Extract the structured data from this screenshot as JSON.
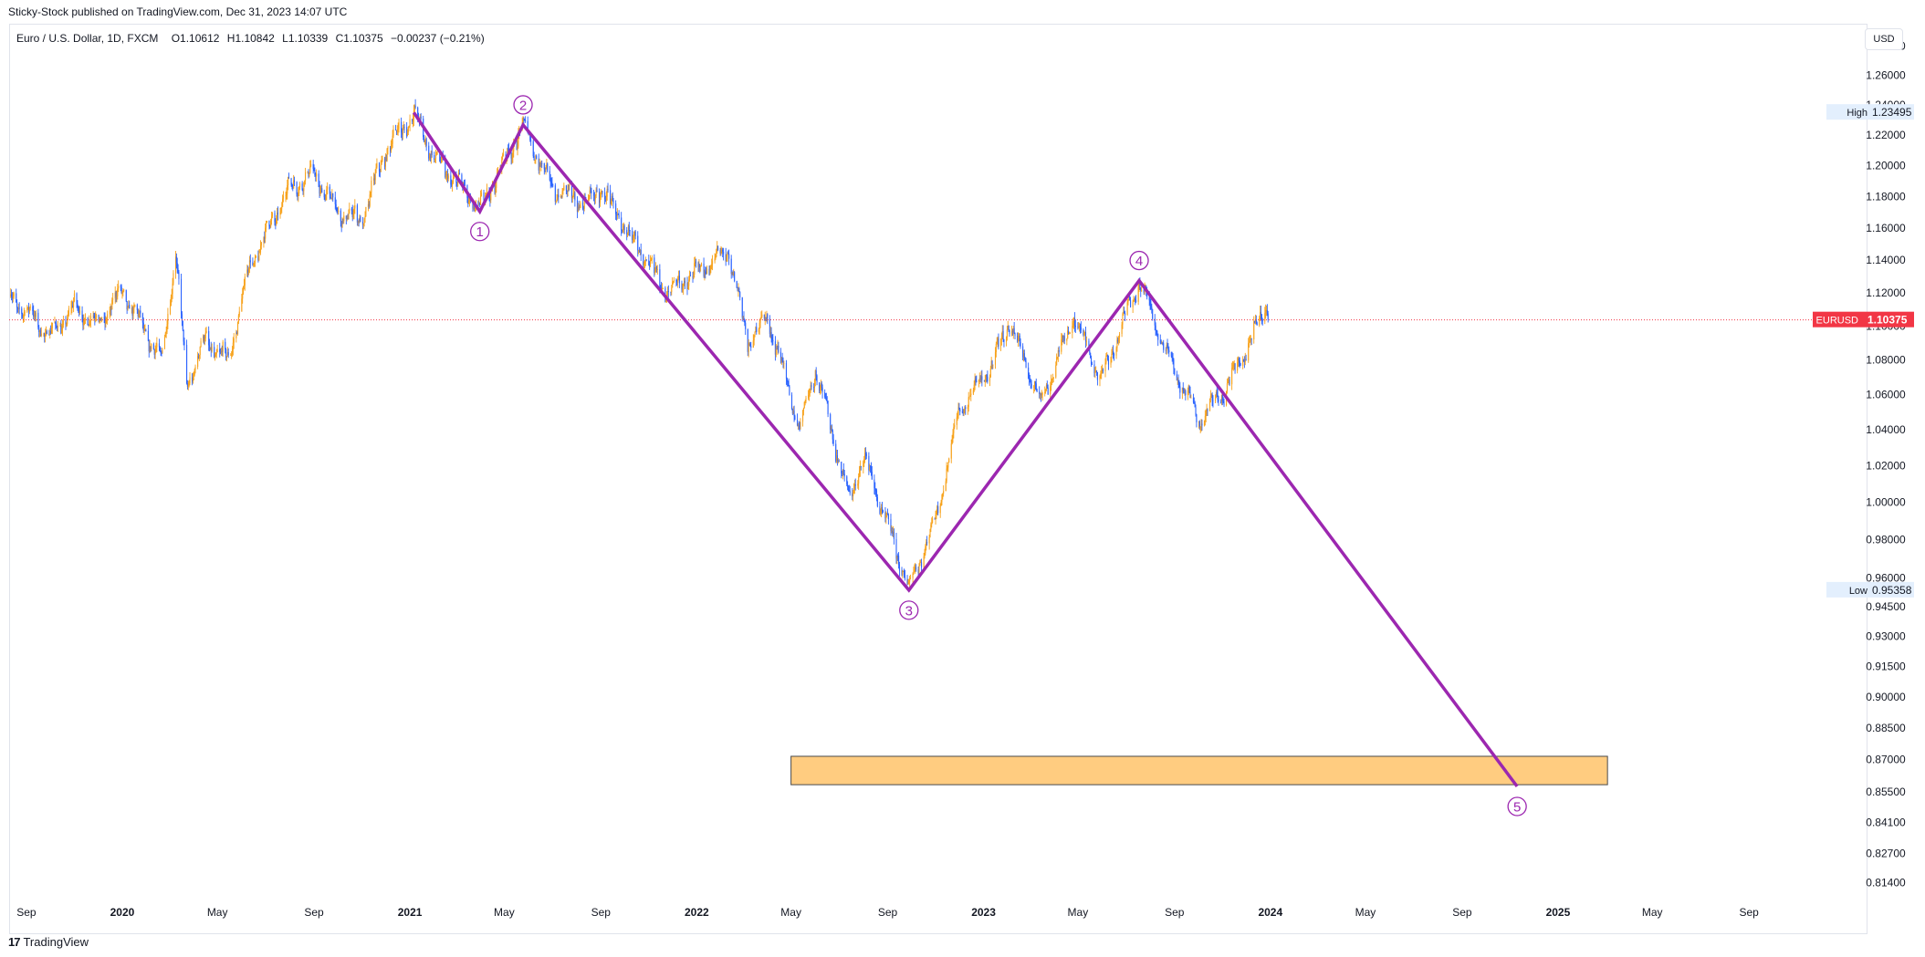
{
  "header": {
    "published": "Sticky-Stock published on TradingView.com, Dec 31, 2023 14:07 UTC"
  },
  "symbol": {
    "name": "Euro / U.S. Dollar, 1D, FXCM",
    "open": "O1.10612",
    "high": "H1.10842",
    "low": "L1.10339",
    "close": "C1.10375",
    "change": "−0.00237 (−0.21%)"
  },
  "currency_button": "USD",
  "footer": {
    "brand": "TradingView",
    "logo_icon": "tradingview-logo-icon"
  },
  "colors": {
    "wave_line": "#9c27b0",
    "candle_up": "#f7a21b",
    "candle_down": "#2962ff",
    "last_price": "#f23645",
    "target_zone_fill": "#ffcc80",
    "target_zone_border": "#4a4a4a",
    "axis_text": "#131722",
    "label_bg": "#e3effd"
  },
  "chart_data": {
    "type": "candlestick",
    "symbol": "EURUSD",
    "interval": "1D",
    "y_axis": {
      "scale": "log",
      "range": [
        0.805,
        1.295
      ],
      "ticks": [
        "1.28000",
        "1.26000",
        "1.24000",
        "1.22000",
        "1.20000",
        "1.18000",
        "1.16000",
        "1.14000",
        "1.12000",
        "1.10000",
        "1.08000",
        "1.06000",
        "1.04000",
        "1.02000",
        "1.00000",
        "0.98000",
        "0.96000",
        "0.94500",
        "0.93000",
        "0.91500",
        "0.90000",
        "0.88500",
        "0.87000",
        "0.85500",
        "0.84100",
        "0.82700",
        "0.81400"
      ]
    },
    "x_axis": {
      "range": [
        "2019-08-10",
        "2025-11-20"
      ],
      "ticks": [
        {
          "date": "2019-09-01",
          "label": "Sep",
          "bold": false
        },
        {
          "date": "2020-01-01",
          "label": "2020",
          "bold": true
        },
        {
          "date": "2020-05-01",
          "label": "May",
          "bold": false
        },
        {
          "date": "2020-09-01",
          "label": "Sep",
          "bold": false
        },
        {
          "date": "2021-01-01",
          "label": "2021",
          "bold": true
        },
        {
          "date": "2021-05-01",
          "label": "May",
          "bold": false
        },
        {
          "date": "2021-09-01",
          "label": "Sep",
          "bold": false
        },
        {
          "date": "2022-01-01",
          "label": "2022",
          "bold": true
        },
        {
          "date": "2022-05-01",
          "label": "May",
          "bold": false
        },
        {
          "date": "2022-09-01",
          "label": "Sep",
          "bold": false
        },
        {
          "date": "2023-01-01",
          "label": "2023",
          "bold": true
        },
        {
          "date": "2023-05-01",
          "label": "May",
          "bold": false
        },
        {
          "date": "2023-09-01",
          "label": "Sep",
          "bold": false
        },
        {
          "date": "2024-01-01",
          "label": "2024",
          "bold": true
        },
        {
          "date": "2024-05-01",
          "label": "May",
          "bold": false
        },
        {
          "date": "2024-09-01",
          "label": "Sep",
          "bold": false
        },
        {
          "date": "2025-01-01",
          "label": "2025",
          "bold": true
        },
        {
          "date": "2025-05-01",
          "label": "May",
          "bold": false
        },
        {
          "date": "2025-09-01",
          "label": "Sep",
          "bold": false
        }
      ]
    },
    "price_path": [
      [
        "2019-08-10",
        1.118
      ],
      [
        "2019-09-01",
        1.11
      ],
      [
        "2019-10-01",
        1.095
      ],
      [
        "2019-11-01",
        1.112
      ],
      [
        "2019-12-01",
        1.102
      ],
      [
        "2020-01-01",
        1.122
      ],
      [
        "2020-02-20",
        1.08
      ],
      [
        "2020-03-09",
        1.145
      ],
      [
        "2020-03-23",
        1.066
      ],
      [
        "2020-04-15",
        1.092
      ],
      [
        "2020-05-15",
        1.08
      ],
      [
        "2020-06-10",
        1.135
      ],
      [
        "2020-07-30",
        1.185
      ],
      [
        "2020-09-01",
        1.195
      ],
      [
        "2020-10-01",
        1.17
      ],
      [
        "2020-11-01",
        1.165
      ],
      [
        "2020-12-01",
        1.21
      ],
      [
        "2021-01-06",
        1.234
      ],
      [
        "2021-02-01",
        1.205
      ],
      [
        "2021-03-31",
        1.172
      ],
      [
        "2021-05-25",
        1.226
      ],
      [
        "2021-07-01",
        1.185
      ],
      [
        "2021-08-15",
        1.175
      ],
      [
        "2021-09-01",
        1.185
      ],
      [
        "2021-10-01",
        1.16
      ],
      [
        "2021-11-24",
        1.12
      ],
      [
        "2022-01-01",
        1.132
      ],
      [
        "2022-02-10",
        1.145
      ],
      [
        "2022-03-07",
        1.09
      ],
      [
        "2022-04-01",
        1.105
      ],
      [
        "2022-05-12",
        1.04
      ],
      [
        "2022-06-01",
        1.075
      ],
      [
        "2022-07-14",
        1.0
      ],
      [
        "2022-08-01",
        1.025
      ],
      [
        "2022-09-28",
        0.954
      ],
      [
        "2022-11-01",
        0.99
      ],
      [
        "2022-12-01",
        1.05
      ],
      [
        "2023-01-10",
        1.075
      ],
      [
        "2023-02-02",
        1.102
      ],
      [
        "2023-03-15",
        1.055
      ],
      [
        "2023-04-26",
        1.105
      ],
      [
        "2023-05-31",
        1.068
      ],
      [
        "2023-07-18",
        1.127
      ],
      [
        "2023-08-20",
        1.085
      ],
      [
        "2023-10-03",
        1.045
      ],
      [
        "2023-11-01",
        1.06
      ],
      [
        "2023-12-01",
        1.085
      ],
      [
        "2023-12-28",
        1.114
      ],
      [
        "2023-12-31",
        1.104
      ]
    ],
    "last_price": {
      "label": "EURUSD",
      "value": "1.10375"
    },
    "high": {
      "label": "High",
      "value": "1.23495"
    },
    "low": {
      "label": "Low",
      "value": "0.95358"
    },
    "wave_points": [
      {
        "date": "2021-01-06",
        "price": 1.2349
      },
      {
        "date": "2021-03-31",
        "price": 1.1704
      },
      {
        "date": "2021-05-25",
        "price": 1.2266
      },
      {
        "date": "2022-09-28",
        "price": 0.9536
      },
      {
        "date": "2023-07-18",
        "price": 1.1275
      },
      {
        "date": "2024-11-10",
        "price": 0.8575
      }
    ],
    "wave_labels": [
      {
        "text": "1",
        "date": "2021-03-31",
        "price": 1.1705,
        "position": "below"
      },
      {
        "text": "2",
        "date": "2021-05-25",
        "price": 1.2266,
        "position": "above"
      },
      {
        "text": "3",
        "date": "2022-09-28",
        "price": 0.9536,
        "position": "below"
      },
      {
        "text": "4",
        "date": "2023-07-18",
        "price": 1.1275,
        "position": "above"
      },
      {
        "text": "5",
        "date": "2024-11-10",
        "price": 0.8575,
        "position": "below"
      }
    ],
    "target_zone": {
      "date_from": "2022-05-01",
      "date_to": "2025-03-05",
      "price_low": 0.8583,
      "price_high": 0.8716
    }
  }
}
